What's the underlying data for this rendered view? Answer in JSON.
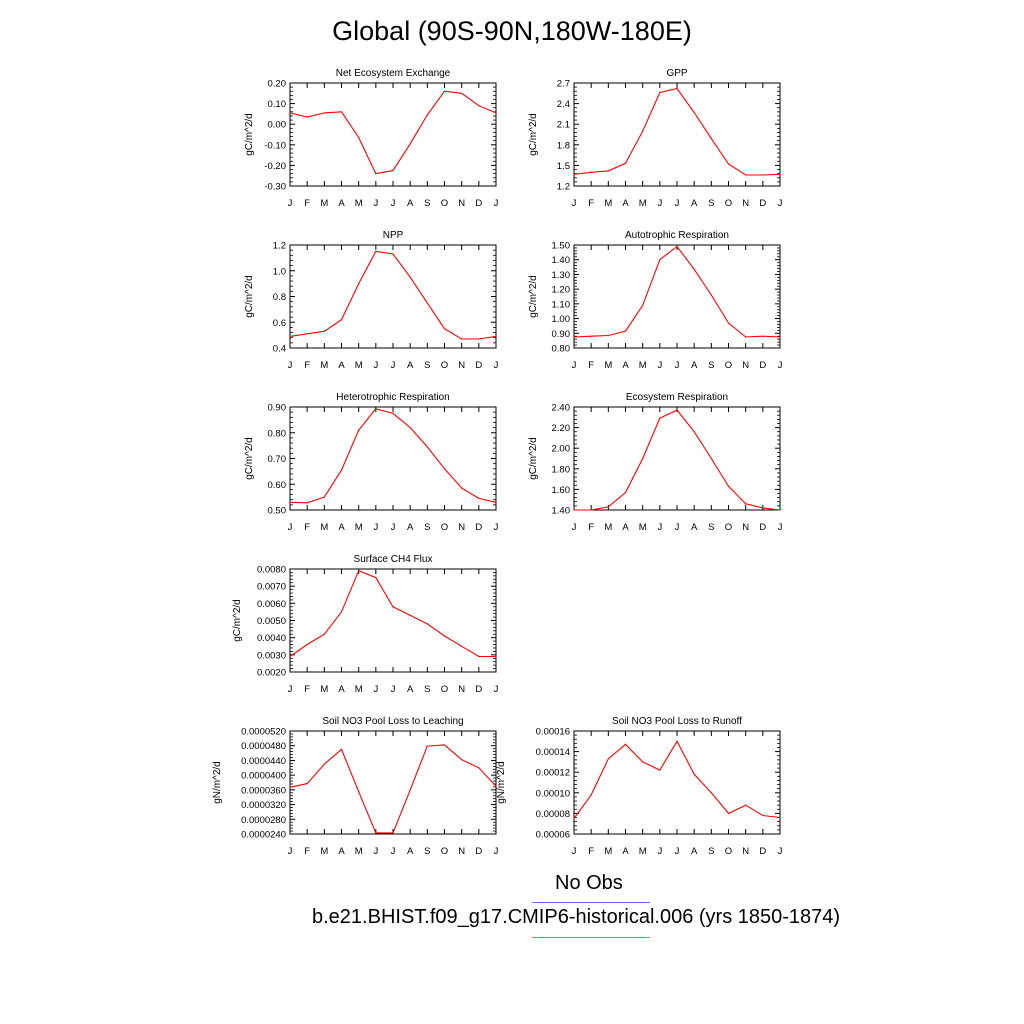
{
  "page_title": "Global (90S-90N,180W-180E)",
  "legend": {
    "obs_label": "No Obs",
    "case_label": "b.e21.BHIST.f09_g17.CMIP6-historical.006 (yrs 1850-1874)",
    "obs_color": "#6b6bf0",
    "case_color": "#f07070"
  },
  "chart_data": [
    {
      "type": "line",
      "title": "Net Ecosystem Exchange",
      "ylabel": "gC/m^2/d",
      "x": [
        "J",
        "F",
        "M",
        "A",
        "M",
        "J",
        "J",
        "A",
        "S",
        "O",
        "N",
        "D",
        "J"
      ],
      "ylim": [
        -0.3,
        0.2
      ],
      "yticks": [
        "0.20",
        "0.10",
        "0.00",
        "-0.10",
        "-0.20",
        "-0.30"
      ],
      "series": [
        {
          "color": "#ff0000",
          "values": [
            0.055,
            0.035,
            0.055,
            0.06,
            -0.065,
            -0.24,
            -0.225,
            -0.095,
            0.045,
            0.16,
            0.15,
            0.09,
            0.055
          ]
        }
      ]
    },
    {
      "type": "line",
      "title": "GPP",
      "ylabel": "gC/m^2/d",
      "x": [
        "J",
        "F",
        "M",
        "A",
        "M",
        "J",
        "J",
        "A",
        "S",
        "O",
        "N",
        "D",
        "J"
      ],
      "ylim": [
        1.2,
        2.7
      ],
      "yticks": [
        "2.7",
        "2.4",
        "2.1",
        "1.8",
        "1.5",
        "1.2"
      ],
      "series": [
        {
          "color": "#ff0000",
          "values": [
            1.37,
            1.4,
            1.42,
            1.53,
            2.0,
            2.56,
            2.62,
            2.27,
            1.89,
            1.52,
            1.36,
            1.36,
            1.37
          ]
        }
      ]
    },
    {
      "type": "line",
      "title": "NPP",
      "ylabel": "gC/m^2/d",
      "x": [
        "J",
        "F",
        "M",
        "A",
        "M",
        "J",
        "J",
        "A",
        "S",
        "O",
        "N",
        "D",
        "J"
      ],
      "ylim": [
        0.4,
        1.2
      ],
      "yticks": [
        "1.2",
        "1.0",
        "0.8",
        "0.6",
        "0.4"
      ],
      "series": [
        {
          "color": "#ff0000",
          "values": [
            0.49,
            0.51,
            0.53,
            0.62,
            0.9,
            1.15,
            1.13,
            0.95,
            0.75,
            0.55,
            0.47,
            0.47,
            0.49
          ]
        }
      ]
    },
    {
      "type": "line",
      "title": "Autotrophic Respiration",
      "ylabel": "gC/m^2/d",
      "x": [
        "J",
        "F",
        "M",
        "A",
        "M",
        "J",
        "J",
        "A",
        "S",
        "O",
        "N",
        "D",
        "J"
      ],
      "ylim": [
        0.8,
        1.5
      ],
      "yticks": [
        "1.50",
        "1.40",
        "1.30",
        "1.20",
        "1.10",
        "1.00",
        "0.90",
        "0.80"
      ],
      "series": [
        {
          "color": "#ff0000",
          "values": [
            0.875,
            0.88,
            0.885,
            0.915,
            1.09,
            1.4,
            1.49,
            1.335,
            1.16,
            0.97,
            0.875,
            0.88,
            0.875
          ]
        }
      ]
    },
    {
      "type": "line",
      "title": "Heterotrophic Respiration",
      "ylabel": "gC/m^2/d",
      "x": [
        "J",
        "F",
        "M",
        "A",
        "M",
        "J",
        "J",
        "A",
        "S",
        "O",
        "N",
        "D",
        "J"
      ],
      "ylim": [
        0.5,
        0.9
      ],
      "yticks": [
        "0.90",
        "0.80",
        "0.70",
        "0.60",
        "0.50"
      ],
      "series": [
        {
          "color": "#ff0000",
          "values": [
            0.53,
            0.528,
            0.55,
            0.655,
            0.81,
            0.893,
            0.875,
            0.82,
            0.745,
            0.66,
            0.585,
            0.545,
            0.53
          ]
        }
      ]
    },
    {
      "type": "line",
      "title": "Ecosystem Respiration",
      "ylabel": "gC/m^2/d",
      "x": [
        "J",
        "F",
        "M",
        "A",
        "M",
        "J",
        "J",
        "A",
        "S",
        "O",
        "N",
        "D",
        "J"
      ],
      "ylim": [
        1.4,
        2.4
      ],
      "yticks": [
        "2.40",
        "2.20",
        "2.00",
        "1.80",
        "1.60",
        "1.40"
      ],
      "series": [
        {
          "color": "#ff0000",
          "values": [
            1.4,
            1.4,
            1.43,
            1.57,
            1.9,
            2.29,
            2.37,
            2.16,
            1.9,
            1.63,
            1.46,
            1.42,
            1.4
          ]
        }
      ]
    },
    {
      "type": "line",
      "title": "Surface CH4 Flux",
      "ylabel": "gC/m^2/d",
      "x": [
        "J",
        "F",
        "M",
        "A",
        "M",
        "J",
        "J",
        "A",
        "S",
        "O",
        "N",
        "D",
        "J"
      ],
      "ylim": [
        0.002,
        0.008
      ],
      "yticks": [
        "0.0080",
        "0.0070",
        "0.0060",
        "0.0050",
        "0.0040",
        "0.0030",
        "0.0020"
      ],
      "series": [
        {
          "color": "#ff0000",
          "values": [
            0.0029,
            0.0036,
            0.0042,
            0.0055,
            0.0079,
            0.0075,
            0.0058,
            0.0053,
            0.0048,
            0.0041,
            0.0035,
            0.0029,
            0.0029
          ]
        }
      ]
    },
    {
      "type": "line",
      "title": "Soil NO3 Pool Loss to Leaching",
      "ylabel": "gN/m^2/d",
      "x": [
        "J",
        "F",
        "M",
        "A",
        "M",
        "J",
        "J",
        "A",
        "S",
        "O",
        "N",
        "D",
        "J"
      ],
      "ylim": [
        2.4e-05,
        5.2e-05
      ],
      "yticks": [
        "0.0000520",
        "0.0000480",
        "0.0000440",
        "0.0000400",
        "0.0000360",
        "0.0000320",
        "0.0000280",
        "0.0000240"
      ],
      "series": [
        {
          "color": "#ff0000",
          "values": [
            3.67e-05,
            3.77e-05,
            4.3e-05,
            4.7e-05,
            3.55e-05,
            2.43e-05,
            2.43e-05,
            3.6e-05,
            4.79e-05,
            4.82e-05,
            4.42e-05,
            4.2e-05,
            3.7e-05
          ]
        }
      ]
    },
    {
      "type": "line",
      "title": "Soil NO3 Pool Loss to Runoff",
      "ylabel": "gN/m^2/d",
      "x": [
        "J",
        "F",
        "M",
        "A",
        "M",
        "J",
        "J",
        "A",
        "S",
        "O",
        "N",
        "D",
        "J"
      ],
      "ylim": [
        6e-05,
        0.00016
      ],
      "yticks": [
        "0.00016",
        "0.00014",
        "0.00012",
        "0.00010",
        "0.00008",
        "0.00006"
      ],
      "series": [
        {
          "color": "#ff0000",
          "values": [
            7.5e-05,
            9.8e-05,
            0.000133,
            0.000147,
            0.00013,
            0.000122,
            0.00015,
            0.000118,
            0.0001,
            8e-05,
            8.8e-05,
            7.8e-05,
            7.6e-05
          ]
        }
      ]
    }
  ]
}
